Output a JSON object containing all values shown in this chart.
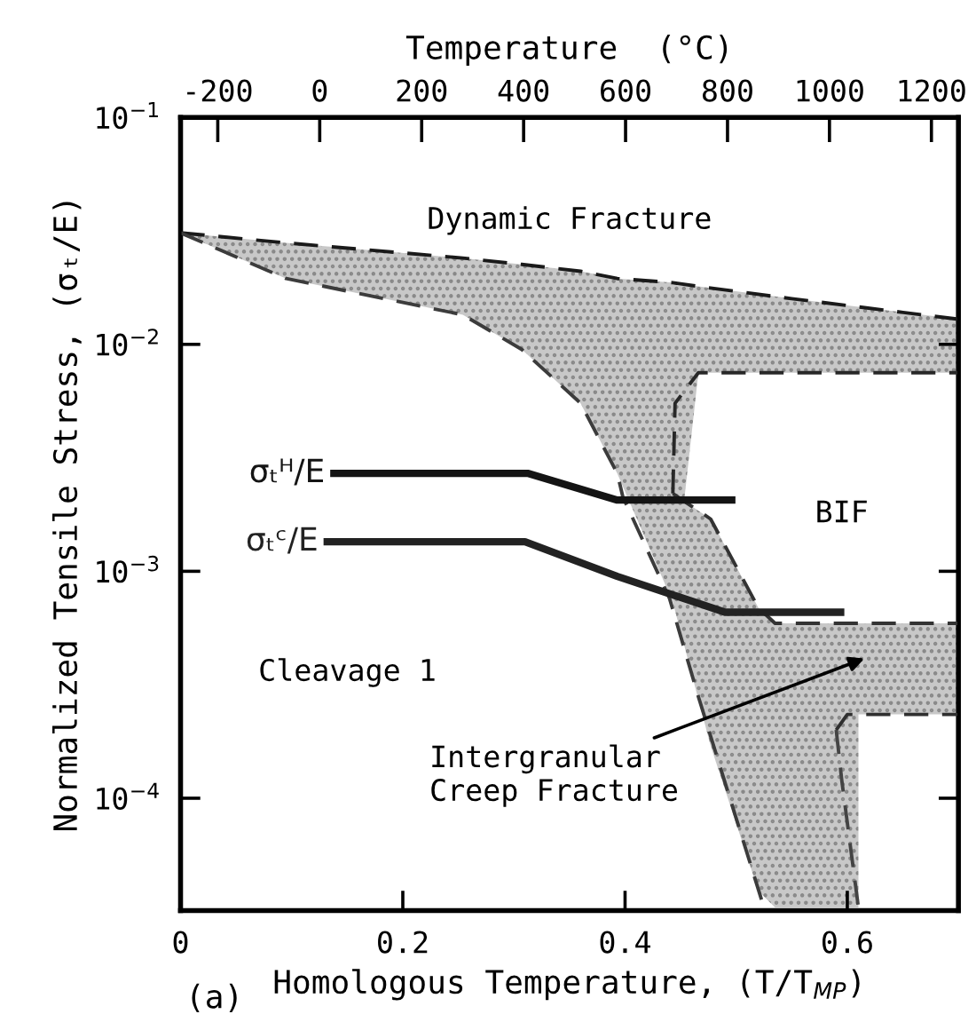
{
  "chart_data": {
    "type": "line",
    "xlabel": "Homologous Temperature, (T/T$_{MP}$)",
    "ylabel": "Normalized Tensile Stress, (σₜ/E)",
    "x2label": "Temperature  (°C)",
    "log": "y",
    "grid": false,
    "legend": false,
    "xlim": [
      0,
      0.7
    ],
    "xticks": [
      0,
      0.2,
      0.4,
      0.6
    ],
    "x2lim": [
      -273,
      1253
    ],
    "x2ticks": [
      -200,
      0,
      200,
      400,
      600,
      800,
      1000,
      1200
    ],
    "ylim": [
      3.2e-05,
      0.1
    ],
    "yticks": [
      {
        "value": 0.1,
        "label": "10$^{−1}$"
      },
      {
        "value": 0.01,
        "label": "10$^{−2}$"
      },
      {
        "value": 0.001,
        "label": "10$^{−3}$"
      },
      {
        "value": 0.0001,
        "label": "10$^{−4}$"
      }
    ],
    "series": [
      {
        "color": "#1a1a1a",
        "line_style": "dashed",
        "x": [
          0,
          0.095,
          0.254,
          0.307,
          0.36,
          0.393,
          0.443,
          0.466,
          0.55,
          0.7
        ],
        "values": [
          0.031,
          0.028,
          0.024,
          0.0225,
          0.021,
          0.0195,
          0.0187,
          0.018,
          0.0159,
          0.0129
        ],
        "lower": [
          0.031,
          0.0195,
          0.0135,
          0.0095,
          0.0055,
          0.0027,
          0.00073,
          0.0075,
          0.0075,
          0.0075
        ],
        "upper": [
          0.031,
          0.028,
          0.024,
          0.0225,
          0.021,
          0.0195,
          0.0187,
          0.018,
          0.0159,
          0.0129
        ]
      },
      {
        "color": "#3c3c3c",
        "line_style": "dashed",
        "x": [
          0,
          0.095,
          0.254,
          0.307,
          0.36,
          0.393,
          0.398,
          0.44,
          0.466,
          0.493,
          0.525
        ],
        "values": [
          0.031,
          0.0195,
          0.0135,
          0.0095,
          0.0055,
          0.0027,
          0.00213,
          0.00076,
          0.00028,
          0.000105,
          3.3e-05
        ]
      },
      {
        "color": "#282828",
        "line_style": "dashed",
        "x": [
          0.443,
          0.445,
          0.466,
          0.7
        ],
        "values": [
          0.0022,
          0.0055,
          0.0075,
          0.0075
        ]
      },
      {
        "color": "#333333",
        "line_style": "dashed",
        "x": [
          0.443,
          0.477,
          0.52,
          0.535,
          0.61,
          0.61,
          0.7
        ],
        "values": [
          0.0022,
          0.0017,
          0.00069,
          0.00059,
          0.00059,
          0.00059,
          0.00059
        ],
        "lower": [
          0.00073,
          0.00017,
          3.9e-05,
          3.3e-05,
          3.3e-05,
          0.000234,
          0.000234
        ],
        "upper": [
          0.0022,
          0.0017,
          0.00069,
          0.00059,
          0.00059,
          0.00059,
          0.00059
        ]
      },
      {
        "color": "#2f2f2f",
        "line_style": "dashed",
        "x": [
          0.59,
          0.6,
          0.7
        ],
        "values": [
          0.0002,
          0.000234,
          0.000234
        ]
      },
      {
        "color": "#444444",
        "line_style": "dashed",
        "x": [
          0.59,
          0.595,
          0.61
        ],
        "values": [
          0.0002,
          0.00012,
          3.3e-05
        ]
      },
      {
        "color": "#141414",
        "line_style": "solid",
        "name": "σₜᴴ/E",
        "x": [
          0.138,
          0.313,
          0.393,
          0.496
        ],
        "values": [
          0.0027,
          0.0027,
          0.00206,
          0.00206
        ]
      },
      {
        "color": "#222222",
        "line_style": "solid",
        "name": "σₜᶜ/E",
        "x": [
          0.132,
          0.31,
          0.393,
          0.49,
          0.594
        ],
        "values": [
          0.00135,
          0.00135,
          0.00095,
          0.00066,
          0.00066
        ]
      }
    ],
    "annotations": [
      "Dynamic Fracture",
      "BIF",
      "Cleavage 1",
      "Intergranular\nCreep Fracture",
      "(a)"
    ]
  }
}
